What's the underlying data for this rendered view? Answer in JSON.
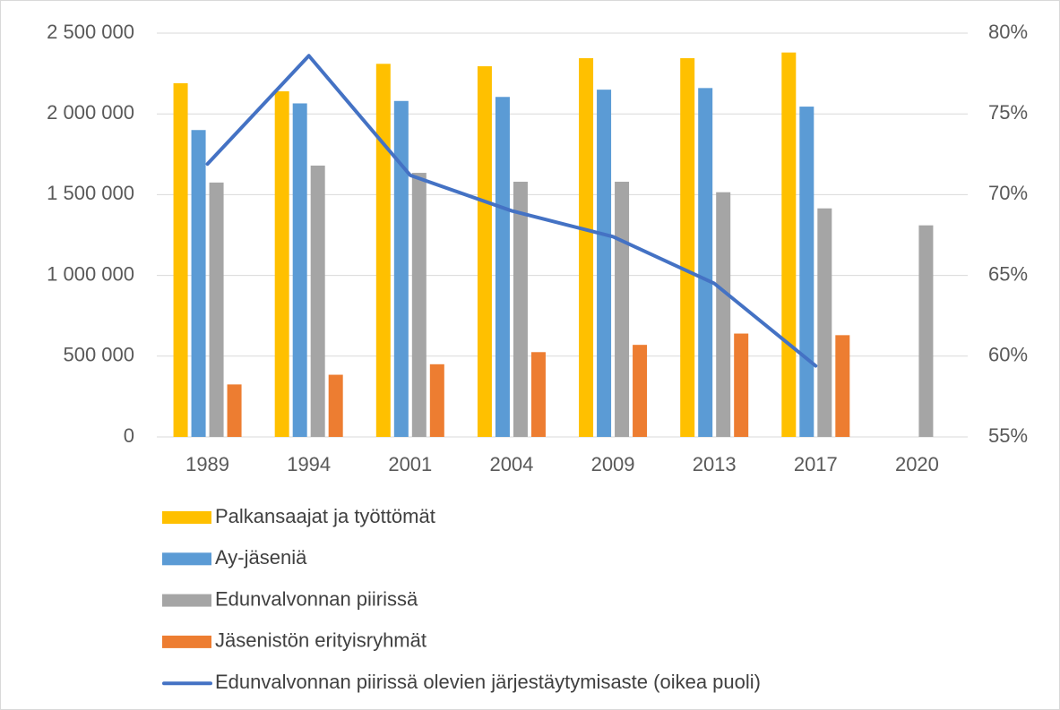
{
  "chart_data": {
    "type": "bar",
    "categories": [
      "1989",
      "1994",
      "2001",
      "2004",
      "2009",
      "2013",
      "2017",
      "2020"
    ],
    "series": [
      {
        "name": "Palkansaajat ja työttömät",
        "color": "#ffc000",
        "values": [
          2190000,
          2140000,
          2310000,
          2295000,
          2345000,
          2345000,
          2380000,
          null
        ]
      },
      {
        "name": "Ay-jäseniä",
        "color": "#5b9bd5",
        "values": [
          1900000,
          2065000,
          2080000,
          2105000,
          2150000,
          2160000,
          2045000,
          null
        ]
      },
      {
        "name": "Edunvalvonnan piirissä",
        "color": "#a5a5a5",
        "values": [
          1575000,
          1680000,
          1635000,
          1580000,
          1580000,
          1515000,
          1415000,
          1310000
        ]
      },
      {
        "name": "Jäsenistön erityisryhmät",
        "color": "#ed7d31",
        "values": [
          325000,
          385000,
          450000,
          525000,
          570000,
          640000,
          630000,
          null
        ]
      },
      {
        "name": "Edunvalvonnan piirissä olevien järjestäytymisaste (oikea puoli)",
        "color": "#4472c4",
        "type": "line",
        "axis": "y2",
        "values": [
          71.9,
          78.6,
          71.2,
          69.0,
          67.4,
          64.5,
          59.4,
          null
        ]
      }
    ],
    "ylim": [
      0,
      2500000
    ],
    "yticks": [
      0,
      {
        "value": 500000,
        "label": "500 000"
      },
      {
        "value": 1000000,
        "label": "1 000 000"
      },
      {
        "value": 1500000,
        "label": "1 500 000"
      },
      {
        "value": 2000000,
        "label": "2 000 000"
      },
      {
        "value": 2500000,
        "label": "2 500 000"
      }
    ],
    "y2lim": [
      55,
      80
    ],
    "y2ticks": [
      {
        "value": 55,
        "label": "55%"
      },
      {
        "value": 60,
        "label": "60%"
      },
      {
        "value": 65,
        "label": "65%"
      },
      {
        "value": 70,
        "label": "70%"
      },
      {
        "value": 75,
        "label": "75%"
      },
      {
        "value": 80,
        "label": "80%"
      }
    ],
    "grid": true,
    "legend": "bottom"
  }
}
